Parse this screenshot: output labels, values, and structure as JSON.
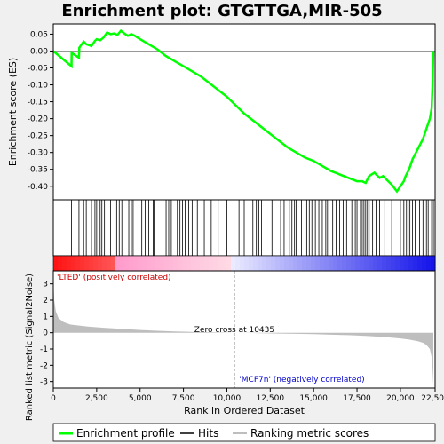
{
  "title": "Enrichment plot: GTGTTGA,MIR-505",
  "colors": {
    "enrichment_line": "#00ff00",
    "hit_line": "#000000",
    "metric_fill": "#bebebe",
    "positive_label": "#cc0000",
    "negative_label": "#0000cc",
    "frame": "#000000",
    "background_outer": "#f0f0f0"
  },
  "legend": {
    "enrichment": "Enrichment profile",
    "hits": "Hits",
    "metric": "Ranking metric scores"
  },
  "labels": {
    "positive": "'LTED' (positively correlated)",
    "negative": "'MCF7n' (negatively correlated)",
    "zero_cross": "Zero cross at 10435"
  },
  "chart_data": [
    {
      "type": "line",
      "name": "enrichment-plot",
      "ylabel": "Enrichment score (ES)",
      "ylim": [
        -0.44,
        0.08
      ],
      "xlim": [
        0,
        22000
      ],
      "yticks": [
        "0.05",
        "0.00",
        "-0.05",
        "-0.10",
        "-0.15",
        "-0.20",
        "-0.25",
        "-0.30",
        "-0.35",
        "-0.40"
      ],
      "ytick_values": [
        0.05,
        0.0,
        -0.05,
        -0.1,
        -0.15,
        -0.2,
        -0.25,
        -0.3,
        -0.35,
        -0.4
      ],
      "x": [
        0,
        1050,
        1060,
        1480,
        1500,
        1750,
        1900,
        2200,
        2400,
        2500,
        2700,
        2900,
        3100,
        3300,
        3500,
        3700,
        3900,
        4100,
        4300,
        4500,
        4700,
        5000,
        5500,
        6000,
        6500,
        7000,
        7500,
        8000,
        8500,
        9000,
        9500,
        10000,
        10500,
        11000,
        11500,
        12000,
        12500,
        13000,
        13500,
        14000,
        14500,
        15000,
        15500,
        16000,
        16500,
        17000,
        17500,
        17800,
        18000,
        18200,
        18500,
        18800,
        19000,
        19200,
        19500,
        19800,
        20200,
        20300,
        20500,
        20700,
        20900,
        21100,
        21300,
        21500,
        21700,
        21800,
        21850,
        21900
      ],
      "y": [
        0.0,
        -0.045,
        -0.005,
        -0.02,
        0.01,
        0.028,
        0.02,
        0.015,
        0.03,
        0.035,
        0.032,
        0.04,
        0.055,
        0.05,
        0.052,
        0.048,
        0.06,
        0.052,
        0.045,
        0.05,
        0.045,
        0.035,
        0.02,
        0.005,
        -0.015,
        -0.03,
        -0.045,
        -0.06,
        -0.075,
        -0.095,
        -0.115,
        -0.135,
        -0.16,
        -0.185,
        -0.205,
        -0.225,
        -0.245,
        -0.265,
        -0.285,
        -0.3,
        -0.315,
        -0.325,
        -0.34,
        -0.355,
        -0.365,
        -0.375,
        -0.385,
        -0.385,
        -0.39,
        -0.37,
        -0.36,
        -0.375,
        -0.37,
        -0.38,
        -0.395,
        -0.415,
        -0.385,
        -0.37,
        -0.35,
        -0.32,
        -0.3,
        -0.28,
        -0.26,
        -0.23,
        -0.2,
        -0.17,
        -0.1,
        0.0
      ]
    },
    {
      "type": "scatter",
      "name": "hits",
      "positions": [
        1050,
        1480,
        1750,
        1900,
        2200,
        2400,
        2500,
        2700,
        2800,
        2950,
        3100,
        3300,
        3650,
        3800,
        3950,
        4350,
        4500,
        4600,
        5100,
        5300,
        5500,
        5750,
        5800,
        6500,
        6650,
        6800,
        7150,
        7300,
        7450,
        7600,
        7800,
        8000,
        8300,
        8700,
        9100,
        9500,
        10000,
        10700,
        11000,
        11500,
        11700,
        11850,
        12000,
        12600,
        13100,
        13300,
        13600,
        13750,
        13900,
        14000,
        14300,
        14600,
        14750,
        14900,
        15100,
        15300,
        15500,
        15700,
        15800,
        16100,
        16300,
        16500,
        16700,
        16900,
        17200,
        17400,
        17500,
        17700,
        17800,
        17900,
        18000,
        18100,
        18200,
        18400,
        18600,
        18800,
        19100,
        19500,
        20000,
        20200,
        20350,
        20450,
        20550,
        20700,
        20850,
        21100,
        21300,
        21500,
        21600,
        21800,
        21900
      ]
    },
    {
      "type": "area",
      "name": "ranking-metric",
      "ylabel": "Ranked list metric (Signal2Noise)",
      "xlabel": "Rank in Ordered Dataset",
      "ylim": [
        -3.4,
        3.8
      ],
      "xlim": [
        0,
        22000
      ],
      "yticks": [
        "3",
        "2",
        "1",
        "0",
        "-1",
        "-2",
        "-3"
      ],
      "ytick_values": [
        3,
        2,
        1,
        0,
        -1,
        -2,
        -3
      ],
      "xticks": [
        "0",
        "2,500",
        "5,000",
        "7,500",
        "10,000",
        "12,500",
        "15,000",
        "17,500",
        "20,000",
        "22,500"
      ],
      "xtick_values": [
        0,
        2500,
        5000,
        7500,
        10000,
        12500,
        15000,
        17500,
        20000,
        22500
      ],
      "x": [
        0,
        50,
        150,
        300,
        600,
        1000,
        2000,
        3000,
        4000,
        5000,
        6000,
        7000,
        8000,
        9000,
        10000,
        10435,
        11000,
        12000,
        13000,
        14000,
        15000,
        16000,
        17000,
        18000,
        19000,
        20000,
        20500,
        21000,
        21300,
        21500,
        21700,
        21800,
        21850,
        21900
      ],
      "y": [
        3.2,
        2.0,
        1.3,
        0.9,
        0.65,
        0.5,
        0.38,
        0.3,
        0.23,
        0.17,
        0.12,
        0.08,
        0.05,
        0.03,
        0.01,
        0.0,
        -0.01,
        -0.03,
        -0.05,
        -0.07,
        -0.09,
        -0.12,
        -0.15,
        -0.2,
        -0.26,
        -0.35,
        -0.42,
        -0.52,
        -0.62,
        -0.75,
        -1.0,
        -1.5,
        -2.2,
        -3.2
      ]
    }
  ]
}
